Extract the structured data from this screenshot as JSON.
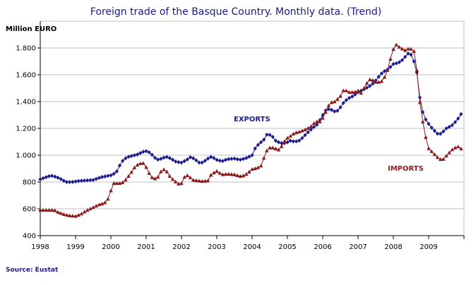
{
  "chart_data": {
    "type": "line",
    "title": "Foreign trade of the Basque Country. Monthly data. (Trend)",
    "ylabel": "Million EURO",
    "source": "Source: Eustat",
    "ylim": [
      400,
      2000
    ],
    "yticks": [
      400,
      600,
      800,
      1000,
      1200,
      1400,
      1600,
      1800
    ],
    "ytick_labels": [
      "400",
      "600",
      "800",
      "1.000",
      "1.200",
      "1.400",
      "1.600",
      "1.800"
    ],
    "xlim": [
      1998,
      2010
    ],
    "xticks": [
      "1998",
      "1999",
      "2000",
      "2001",
      "2002",
      "2003",
      "2004",
      "2005",
      "2006",
      "2007",
      "2008",
      "2009"
    ],
    "grid": "horizontal",
    "series": [
      {
        "name": "EXPORTS",
        "label": "EXPORTS",
        "color": "#1c1c8f",
        "marker": "diamond",
        "knots": [
          [
            1998.0,
            820
          ],
          [
            1998.15,
            835
          ],
          [
            1998.3,
            848
          ],
          [
            1998.45,
            838
          ],
          [
            1998.6,
            820
          ],
          [
            1998.72,
            800
          ],
          [
            1998.9,
            800
          ],
          [
            1999.1,
            808
          ],
          [
            1999.3,
            812
          ],
          [
            1999.5,
            815
          ],
          [
            1999.65,
            830
          ],
          [
            1999.8,
            840
          ],
          [
            2000.0,
            850
          ],
          [
            2000.15,
            870
          ],
          [
            2000.3,
            950
          ],
          [
            2000.45,
            985
          ],
          [
            2000.6,
            995
          ],
          [
            2000.75,
            1005
          ],
          [
            2000.9,
            1025
          ],
          [
            2001.0,
            1030
          ],
          [
            2001.1,
            1020
          ],
          [
            2001.2,
            995
          ],
          [
            2001.3,
            965
          ],
          [
            2001.45,
            975
          ],
          [
            2001.55,
            990
          ],
          [
            2001.7,
            975
          ],
          [
            2001.85,
            950
          ],
          [
            2002.0,
            945
          ],
          [
            2002.15,
            965
          ],
          [
            2002.25,
            985
          ],
          [
            2002.35,
            975
          ],
          [
            2002.5,
            945
          ],
          [
            2002.6,
            945
          ],
          [
            2002.75,
            975
          ],
          [
            2002.85,
            990
          ],
          [
            2003.0,
            965
          ],
          [
            2003.15,
            955
          ],
          [
            2003.3,
            970
          ],
          [
            2003.5,
            975
          ],
          [
            2003.65,
            965
          ],
          [
            2003.85,
            980
          ],
          [
            2004.0,
            1000
          ],
          [
            2004.1,
            1060
          ],
          [
            2004.2,
            1085
          ],
          [
            2004.35,
            1120
          ],
          [
            2004.42,
            1155
          ],
          [
            2004.55,
            1150
          ],
          [
            2004.65,
            1110
          ],
          [
            2004.8,
            1090
          ],
          [
            2004.95,
            1090
          ],
          [
            2005.1,
            1110
          ],
          [
            2005.2,
            1100
          ],
          [
            2005.35,
            1110
          ],
          [
            2005.5,
            1150
          ],
          [
            2005.7,
            1200
          ],
          [
            2005.85,
            1230
          ],
          [
            2006.0,
            1300
          ],
          [
            2006.1,
            1340
          ],
          [
            2006.2,
            1345
          ],
          [
            2006.35,
            1325
          ],
          [
            2006.45,
            1335
          ],
          [
            2006.55,
            1380
          ],
          [
            2006.7,
            1420
          ],
          [
            2006.85,
            1440
          ],
          [
            2007.0,
            1470
          ],
          [
            2007.15,
            1490
          ],
          [
            2007.3,
            1510
          ],
          [
            2007.45,
            1540
          ],
          [
            2007.55,
            1575
          ],
          [
            2007.7,
            1620
          ],
          [
            2007.85,
            1640
          ],
          [
            2008.0,
            1680
          ],
          [
            2008.15,
            1690
          ],
          [
            2008.3,
            1720
          ],
          [
            2008.4,
            1760
          ],
          [
            2008.5,
            1750
          ],
          [
            2008.6,
            1690
          ],
          [
            2008.68,
            1600
          ],
          [
            2008.75,
            1430
          ],
          [
            2008.85,
            1300
          ],
          [
            2008.95,
            1250
          ],
          [
            2009.1,
            1200
          ],
          [
            2009.25,
            1160
          ],
          [
            2009.35,
            1160
          ],
          [
            2009.5,
            1200
          ],
          [
            2009.65,
            1220
          ],
          [
            2009.8,
            1260
          ],
          [
            2009.95,
            1320
          ]
        ]
      },
      {
        "name": "IMPORTS",
        "label": "IMPORTS",
        "color": "#8c1a1a",
        "marker": "triangle",
        "knots": [
          [
            1998.0,
            590
          ],
          [
            1998.2,
            590
          ],
          [
            1998.4,
            590
          ],
          [
            1998.5,
            575
          ],
          [
            1998.65,
            560
          ],
          [
            1998.8,
            550
          ],
          [
            1999.0,
            545
          ],
          [
            1999.15,
            560
          ],
          [
            1999.3,
            585
          ],
          [
            1999.5,
            610
          ],
          [
            1999.65,
            630
          ],
          [
            1999.8,
            640
          ],
          [
            1999.9,
            660
          ],
          [
            2000.0,
            735
          ],
          [
            2000.05,
            790
          ],
          [
            2000.15,
            790
          ],
          [
            2000.3,
            790
          ],
          [
            2000.4,
            810
          ],
          [
            2000.55,
            860
          ],
          [
            2000.7,
            920
          ],
          [
            2000.85,
            940
          ],
          [
            2000.95,
            940
          ],
          [
            2001.05,
            880
          ],
          [
            2001.15,
            835
          ],
          [
            2001.25,
            825
          ],
          [
            2001.35,
            840
          ],
          [
            2001.45,
            895
          ],
          [
            2001.55,
            890
          ],
          [
            2001.7,
            830
          ],
          [
            2001.8,
            810
          ],
          [
            2001.9,
            785
          ],
          [
            2002.0,
            790
          ],
          [
            2002.1,
            845
          ],
          [
            2002.2,
            850
          ],
          [
            2002.3,
            815
          ],
          [
            2002.45,
            810
          ],
          [
            2002.6,
            805
          ],
          [
            2002.75,
            810
          ],
          [
            2002.85,
            860
          ],
          [
            2003.0,
            880
          ],
          [
            2003.15,
            855
          ],
          [
            2003.3,
            860
          ],
          [
            2003.5,
            855
          ],
          [
            2003.7,
            840
          ],
          [
            2003.85,
            860
          ],
          [
            2004.0,
            895
          ],
          [
            2004.15,
            905
          ],
          [
            2004.25,
            920
          ],
          [
            2004.35,
            990
          ],
          [
            2004.45,
            1055
          ],
          [
            2004.6,
            1055
          ],
          [
            2004.75,
            1040
          ],
          [
            2004.85,
            1070
          ],
          [
            2004.95,
            1120
          ],
          [
            2005.1,
            1145
          ],
          [
            2005.2,
            1165
          ],
          [
            2005.35,
            1175
          ],
          [
            2005.5,
            1190
          ],
          [
            2005.65,
            1210
          ],
          [
            2005.8,
            1250
          ],
          [
            2005.95,
            1250
          ],
          [
            2006.1,
            1330
          ],
          [
            2006.2,
            1390
          ],
          [
            2006.35,
            1400
          ],
          [
            2006.5,
            1440
          ],
          [
            2006.6,
            1490
          ],
          [
            2006.75,
            1470
          ],
          [
            2006.9,
            1470
          ],
          [
            2007.0,
            1480
          ],
          [
            2007.1,
            1460
          ],
          [
            2007.2,
            1520
          ],
          [
            2007.35,
            1570
          ],
          [
            2007.5,
            1545
          ],
          [
            2007.65,
            1545
          ],
          [
            2007.8,
            1600
          ],
          [
            2007.95,
            1750
          ],
          [
            2008.05,
            1830
          ],
          [
            2008.2,
            1800
          ],
          [
            2008.35,
            1780
          ],
          [
            2008.45,
            1800
          ],
          [
            2008.58,
            1780
          ],
          [
            2008.65,
            1690
          ],
          [
            2008.72,
            1450
          ],
          [
            2008.8,
            1300
          ],
          [
            2008.9,
            1150
          ],
          [
            2009.0,
            1050
          ],
          [
            2009.15,
            1010
          ],
          [
            2009.3,
            970
          ],
          [
            2009.4,
            965
          ],
          [
            2009.55,
            1010
          ],
          [
            2009.7,
            1050
          ],
          [
            2009.85,
            1065
          ],
          [
            2009.95,
            1040
          ]
        ]
      }
    ]
  }
}
